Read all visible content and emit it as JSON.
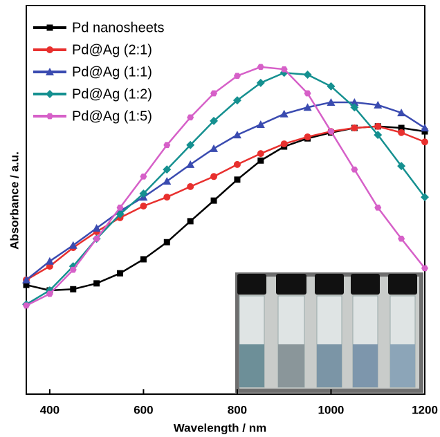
{
  "chart_data": {
    "type": "line",
    "x_label": "Wavelength / nm",
    "y_label": "Absorbance / a.u.",
    "x": [
      350,
      400,
      450,
      500,
      550,
      600,
      650,
      700,
      750,
      800,
      850,
      900,
      950,
      1000,
      1050,
      1100,
      1150,
      1200
    ],
    "xlim": [
      350,
      1200
    ],
    "xticks": [
      400,
      600,
      800,
      1000,
      1200
    ],
    "ylim": [
      0,
      1
    ],
    "legend": "upper left",
    "series": [
      {
        "name": "Pd nanosheets",
        "color": "#000000",
        "marker": "square",
        "values": [
          0.281,
          0.267,
          0.27,
          0.285,
          0.311,
          0.347,
          0.391,
          0.445,
          0.498,
          0.552,
          0.601,
          0.637,
          0.658,
          0.673,
          0.685,
          0.689,
          0.685,
          0.676
        ]
      },
      {
        "name": "Pd@Ag (2:1)",
        "color": "#e8302e",
        "marker": "circle",
        "values": [
          0.294,
          0.329,
          0.377,
          0.418,
          0.454,
          0.484,
          0.507,
          0.534,
          0.56,
          0.591,
          0.619,
          0.644,
          0.662,
          0.676,
          0.685,
          0.689,
          0.673,
          0.649
        ]
      },
      {
        "name": "Pd@Ag (1:1)",
        "color": "#3a4bb0",
        "marker": "triangle",
        "values": [
          0.294,
          0.342,
          0.383,
          0.427,
          0.471,
          0.507,
          0.548,
          0.591,
          0.632,
          0.667,
          0.694,
          0.721,
          0.738,
          0.751,
          0.751,
          0.744,
          0.724,
          0.685
        ]
      },
      {
        "name": "Pd@Ag (1:2)",
        "color": "#159090",
        "marker": "diamond",
        "values": [
          0.231,
          0.267,
          0.329,
          0.4,
          0.463,
          0.516,
          0.578,
          0.641,
          0.703,
          0.756,
          0.801,
          0.827,
          0.822,
          0.792,
          0.738,
          0.667,
          0.587,
          0.507
        ]
      },
      {
        "name": "Pd@Ag (1:5)",
        "color": "#d660c8",
        "marker": "hexagon",
        "values": [
          0.228,
          0.258,
          0.32,
          0.4,
          0.48,
          0.56,
          0.641,
          0.712,
          0.774,
          0.819,
          0.842,
          0.836,
          0.774,
          0.676,
          0.578,
          0.48,
          0.4,
          0.324
        ]
      }
    ]
  }
}
